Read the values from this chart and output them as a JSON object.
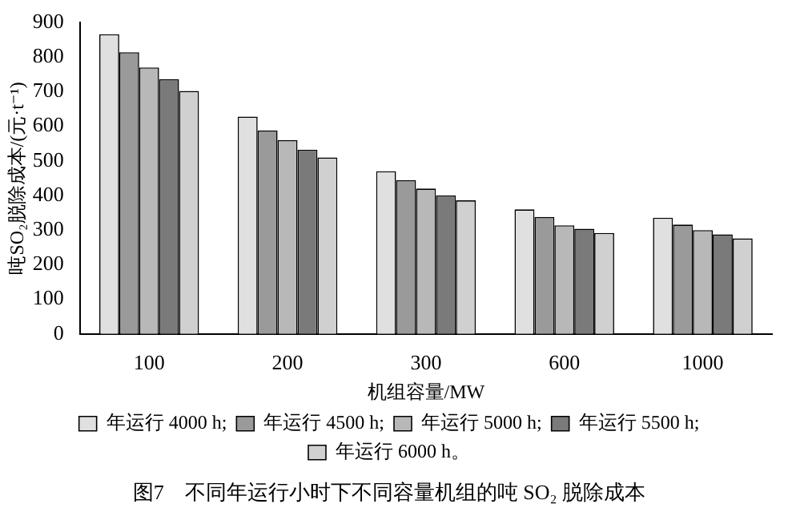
{
  "chart_data": {
    "type": "bar",
    "title": "图7　不同年运行小时下不同容量机组的吨 SO₂ 脱除成本",
    "xlabel": "机组容量/MW",
    "ylabel": "吨SO₂脱除成本/(元·t⁻¹)",
    "categories": [
      "100",
      "200",
      "300",
      "600",
      "1000"
    ],
    "series": [
      {
        "name": "年运行 4000 h;",
        "color": "#e0e0e0",
        "values": [
          866,
          628,
          470,
          360,
          336
        ]
      },
      {
        "name": "年运行 4500 h;",
        "color": "#9a9a9a",
        "values": [
          814,
          588,
          444,
          338,
          316
        ]
      },
      {
        "name": "年运行 5000 h;",
        "color": "#b8b8b8",
        "values": [
          770,
          560,
          420,
          314,
          300
        ]
      },
      {
        "name": "年运行 5500 h;",
        "color": "#7a7a7a",
        "values": [
          736,
          532,
          400,
          304,
          288
        ]
      },
      {
        "name": "年运行 6000 h。",
        "color": "#d0d0d0",
        "values": [
          702,
          510,
          386,
          292,
          276
        ]
      }
    ],
    "ylim": [
      0,
      900
    ],
    "yticks": [
      0,
      100,
      200,
      300,
      400,
      500,
      600,
      700,
      800,
      900
    ],
    "grid": false,
    "legend": "bottom"
  }
}
